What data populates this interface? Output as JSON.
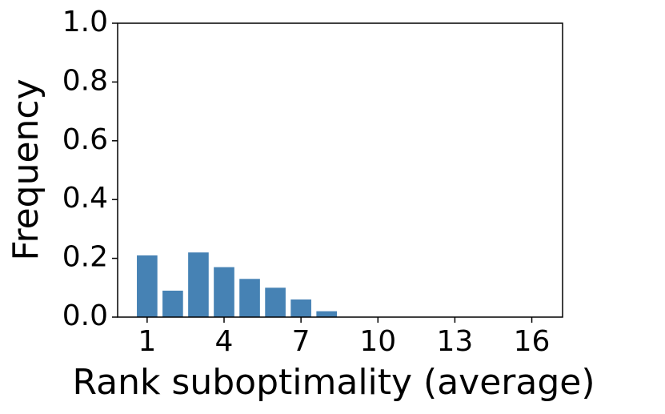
{
  "chart_data": {
    "type": "bar",
    "x": [
      1,
      2,
      3,
      4,
      5,
      6,
      7,
      8
    ],
    "values": [
      0.21,
      0.09,
      0.22,
      0.17,
      0.13,
      0.1,
      0.06,
      0.02
    ],
    "color": "#4682b4",
    "xlabel": "Rank suboptimality (average)",
    "ylabel": "Frequency",
    "xlim": [
      -0.15,
      17.2
    ],
    "xticks": [
      1,
      4,
      7,
      10,
      13,
      16
    ],
    "ylim": [
      0,
      1
    ],
    "yticks": [
      {
        "value": 0,
        "label": "0.0"
      },
      {
        "value": 0.2,
        "label": "0.2"
      },
      {
        "value": 0.4,
        "label": "0.4"
      },
      {
        "value": 0.6,
        "label": "0.6"
      },
      {
        "value": 0.8,
        "label": "0.8"
      },
      {
        "value": 1,
        "label": "1.0"
      }
    ],
    "grid": false
  }
}
